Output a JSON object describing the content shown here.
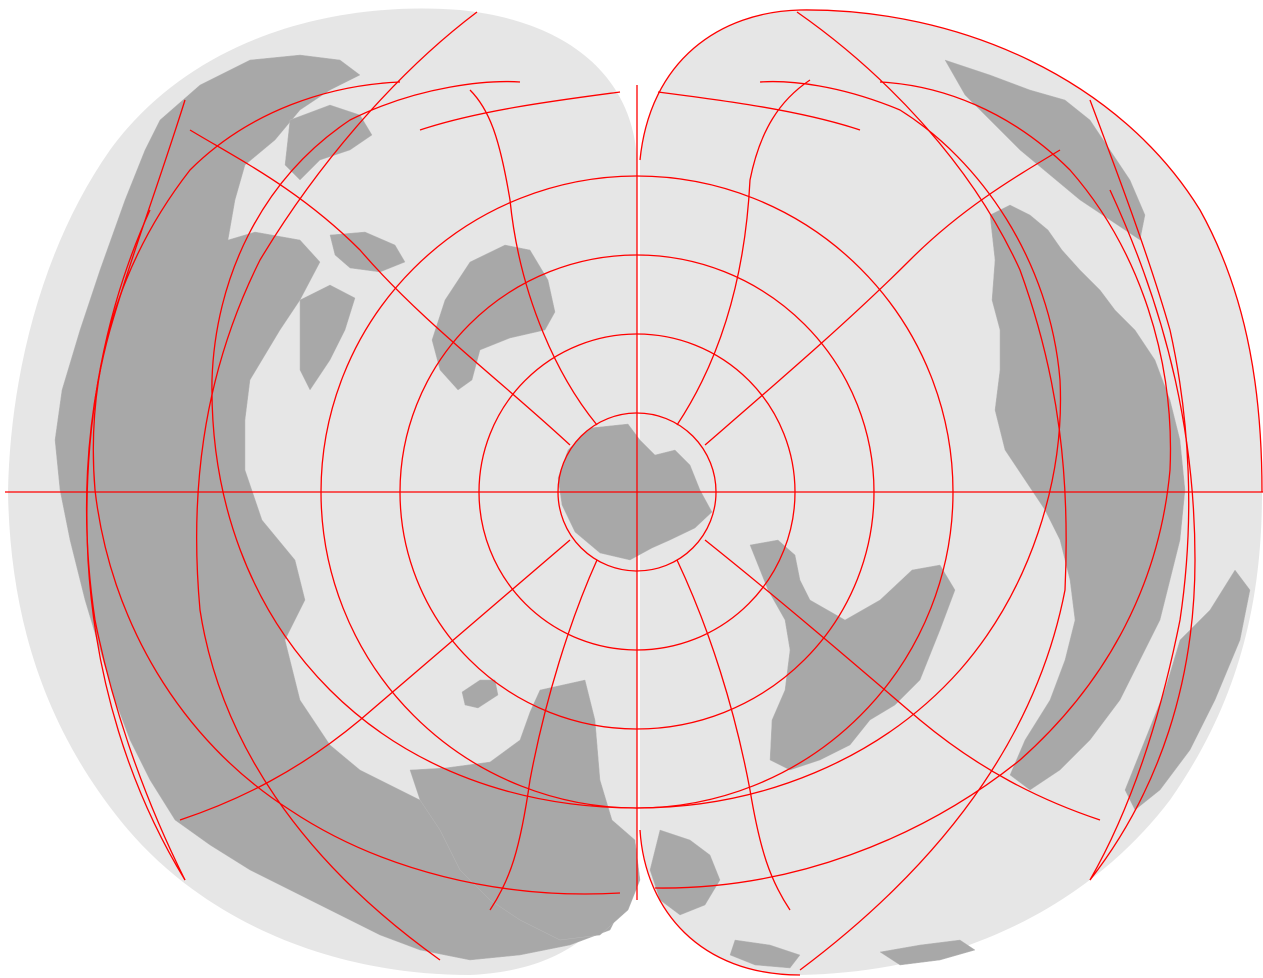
{
  "map": {
    "type": "interrupted polar projection (south-polar aspect, two lobes)",
    "colors": {
      "sphere": "#e6e6e6",
      "land": "#a8a8a8",
      "land_border": "#b8b8b8",
      "graticule": "#ff0000",
      "background": "#ffffff"
    },
    "graticule": {
      "parallel_step_deg": 10,
      "meridian_step_deg": 30
    }
  }
}
